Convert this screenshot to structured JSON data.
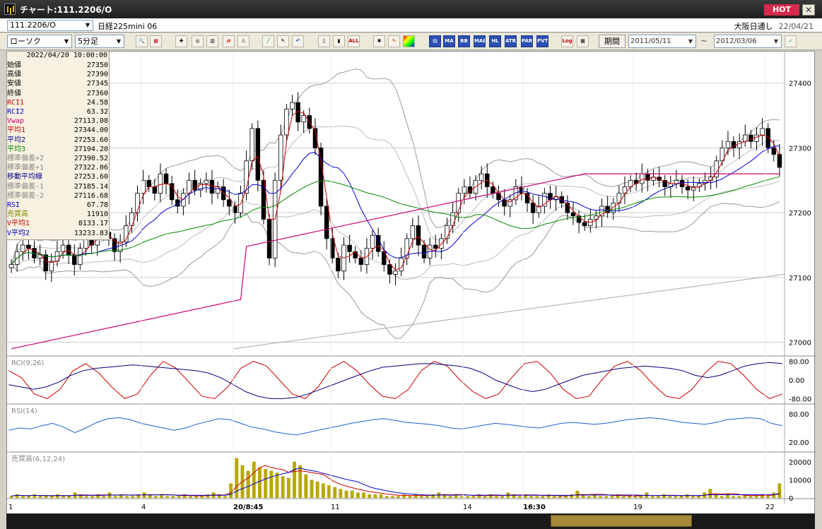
{
  "window": {
    "title": "チャート:111.2206/O",
    "hot_label": "HOT",
    "close_glyph": "✕",
    "icon": "chart-app-icon"
  },
  "infobar": {
    "symbol": "111.2206/O",
    "name": "日経225mini 06",
    "exchange": "大阪日通し",
    "date": "22/04/21"
  },
  "toolbar": {
    "chart_type": "ローソク",
    "period": "5分足",
    "period_label": "期間",
    "date_from": "2011/05/11",
    "date_to": "2012/03/06",
    "tilde": "~",
    "indicator_buttons": [
      "MA",
      "BB",
      "MAE",
      "HL",
      "ATR",
      "PAR",
      "PVT",
      "Log"
    ]
  },
  "databox": {
    "timestamp": "2022/04/20  10:00:00",
    "rows": [
      {
        "k": "始値",
        "v": "27350",
        "c": "#000000"
      },
      {
        "k": "高値",
        "v": "27390",
        "c": "#000000"
      },
      {
        "k": "安値",
        "v": "27345",
        "c": "#000000"
      },
      {
        "k": "終値",
        "v": "27360",
        "c": "#000000"
      },
      {
        "k": "RCI1",
        "v": "24.58",
        "c": "#cc0000"
      },
      {
        "k": "RCI2",
        "v": "63.32",
        "c": "#0000cc"
      },
      {
        "k": "Vwap",
        "v": "27113.08",
        "c": "#cc0077"
      },
      {
        "k": "平均1",
        "v": "27344.00",
        "c": "#cc0000"
      },
      {
        "k": "平均2",
        "v": "27253.60",
        "c": "#000088"
      },
      {
        "k": "平均3",
        "v": "27194.20",
        "c": "#008800"
      },
      {
        "k": "標準偏差+2",
        "v": "27390.52",
        "c": "#888888"
      },
      {
        "k": "標準偏差+1",
        "v": "27322.06",
        "c": "#888888"
      },
      {
        "k": "移動平均線",
        "v": "27253.60",
        "c": "#000088"
      },
      {
        "k": "標準偏差-1",
        "v": "27185.14",
        "c": "#888888"
      },
      {
        "k": "標準偏差-2",
        "v": "27116.68",
        "c": "#888888"
      },
      {
        "k": "RSI",
        "v": "67.78",
        "c": "#0000cc"
      },
      {
        "k": "売買高",
        "v": "11910",
        "c": "#888800"
      },
      {
        "k": "V平均1",
        "v": "8133.17",
        "c": "#cc0000"
      },
      {
        "k": "V平均2",
        "v": "13233.83",
        "c": "#0000cc"
      }
    ]
  },
  "panels": {
    "price": {
      "ticks": [
        "27400",
        "27300",
        "27200",
        "27100",
        "27000"
      ]
    },
    "rci": {
      "label": "RCI(9,26)",
      "ticks": [
        "80.00",
        "0.00",
        "-80.00"
      ]
    },
    "rsi": {
      "label": "RSI(14)",
      "ticks": [
        "80.00",
        "20.00"
      ]
    },
    "volume": {
      "label": "売買高(6,12,24)",
      "ticks": [
        "20000",
        "10000",
        "0"
      ]
    }
  },
  "xaxis": {
    "labels": [
      "1",
      "4",
      "20/8:45",
      "11",
      "14",
      "16:30",
      "19",
      "22"
    ]
  },
  "colors": {
    "up": "#ffffff",
    "down": "#000000",
    "ma1": "#cc0000",
    "ma2": "#0000cc",
    "ma3": "#008800",
    "vwap": "#cc0077",
    "bb": "#aaaaaa",
    "vol": "#b8a800"
  },
  "chart_data": {
    "type": "candlestick",
    "ylim": [
      26980,
      27440
    ],
    "closes": [
      27120,
      27140,
      27150,
      27145,
      27130,
      27135,
      27110,
      27125,
      27140,
      27150,
      27135,
      27120,
      27145,
      27160,
      27150,
      27165,
      27170,
      27160,
      27140,
      27155,
      27180,
      27200,
      27230,
      27250,
      27240,
      27230,
      27260,
      27245,
      27220,
      27210,
      27230,
      27250,
      27235,
      27245,
      27250,
      27230,
      27240,
      27220,
      27210,
      27200,
      27230,
      27280,
      27330,
      27250,
      27190,
      27130,
      27250,
      27320,
      27360,
      27370,
      27340,
      27350,
      27330,
      27300,
      27210,
      27160,
      27130,
      27110,
      27150,
      27140,
      27130,
      27120,
      27145,
      27165,
      27140,
      27120,
      27105,
      27110,
      27130,
      27160,
      27180,
      27150,
      27130,
      27150,
      27145,
      27160,
      27180,
      27200,
      27230,
      27240,
      27230,
      27250,
      27260,
      27240,
      27230,
      27220,
      27210,
      27220,
      27240,
      27230,
      27215,
      27200,
      27210,
      27230,
      27220,
      27225,
      27215,
      27200,
      27195,
      27185,
      27180,
      27190,
      27195,
      27210,
      27200,
      27215,
      27230,
      27240,
      27250,
      27245,
      27260,
      27250,
      27255,
      27250,
      27240,
      27245,
      27250,
      27240,
      27235,
      27240,
      27245,
      27250,
      27255,
      27280,
      27300,
      27310,
      27300,
      27310,
      27320,
      27310,
      27320,
      27330,
      27300,
      27290,
      27270
    ],
    "rci": [
      40,
      10,
      -60,
      -80,
      -40,
      40,
      70,
      30,
      -30,
      -80,
      -60,
      20,
      80,
      50,
      -10,
      -70,
      -80,
      -30,
      50,
      80,
      60,
      0,
      -60,
      -80,
      -30,
      50,
      80,
      40,
      -20,
      -70,
      -80,
      -40,
      40,
      80,
      60,
      0,
      -50,
      -80,
      -60,
      10,
      70,
      80,
      30,
      -40,
      -80,
      -70,
      0,
      60,
      80,
      40,
      -20,
      -70,
      -80,
      -40,
      30,
      80,
      70,
      20,
      -40,
      -80,
      -60
    ],
    "rci2": [
      -20,
      -30,
      -40,
      -30,
      -10,
      20,
      40,
      50,
      55,
      60,
      65,
      60,
      55,
      50,
      45,
      40,
      30,
      10,
      -20,
      -50,
      -70,
      -80,
      -80,
      -75,
      -60,
      -40,
      -20,
      0,
      20,
      40,
      55,
      60,
      65,
      70,
      70,
      65,
      60,
      50,
      30,
      0,
      -20,
      -40,
      -50,
      -40,
      -20,
      0,
      20,
      30,
      40,
      50,
      55,
      60,
      55,
      50,
      40,
      20,
      10,
      20,
      40,
      60,
      70,
      75,
      70
    ],
    "rsi": [
      45,
      50,
      48,
      55,
      60,
      52,
      40,
      50,
      62,
      70,
      72,
      68,
      60,
      55,
      50,
      45,
      50,
      58,
      64,
      70,
      68,
      60,
      52,
      48,
      42,
      38,
      35,
      40,
      45,
      50,
      55,
      60,
      64,
      68,
      70,
      66,
      62,
      60,
      58,
      55,
      50,
      48,
      52,
      56,
      60,
      58,
      55,
      52,
      50,
      55,
      60,
      62,
      60,
      58,
      60,
      64,
      68,
      70,
      72,
      70,
      66,
      62,
      60,
      58,
      62,
      68,
      70,
      72,
      70,
      60,
      55
    ],
    "volume": [
      1,
      2,
      1,
      1,
      2,
      1,
      1,
      1,
      2,
      1,
      1,
      3,
      2,
      1,
      1,
      2,
      1,
      3,
      1,
      2,
      1,
      1,
      2,
      3,
      2,
      1,
      2,
      1,
      1,
      1,
      2,
      1,
      1,
      1,
      2,
      3,
      2,
      1,
      8,
      22,
      18,
      15,
      20,
      17,
      16,
      15,
      14,
      12,
      11,
      20,
      18,
      13,
      10,
      9,
      8,
      7,
      6,
      5,
      4,
      4,
      3,
      3,
      2,
      2,
      2,
      1,
      1,
      1,
      2,
      1,
      2,
      1,
      1,
      2,
      3,
      2,
      1,
      2,
      1,
      1,
      1,
      2,
      1,
      2,
      1,
      1,
      3,
      2,
      1,
      2,
      1,
      1,
      1,
      2,
      1,
      1,
      1,
      2,
      4,
      2,
      1,
      2,
      1,
      1,
      1,
      2,
      1,
      1,
      1,
      1,
      3,
      1,
      1,
      2,
      1,
      1,
      1,
      2,
      1,
      1,
      3,
      5,
      2,
      1,
      2,
      1,
      1,
      2,
      1,
      1,
      2,
      1,
      3,
      8
    ]
  }
}
